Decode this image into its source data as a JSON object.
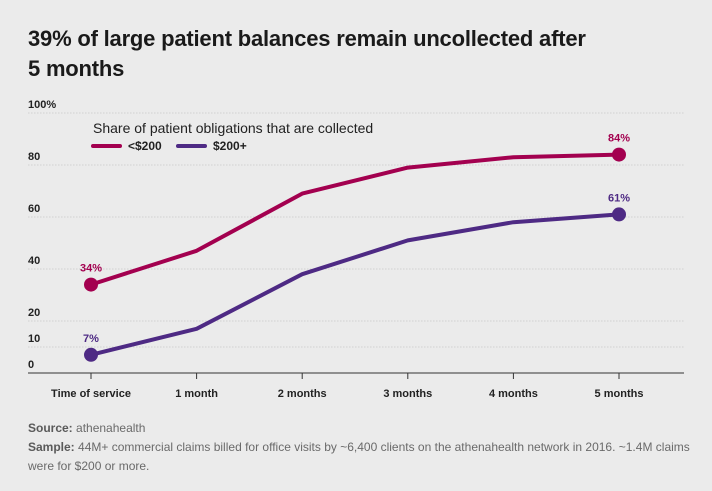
{
  "chart_data": {
    "type": "line",
    "title": "39% of large patient balances remain uncollected after 5 months",
    "legend_title": "Share of patient obligations that are collected",
    "categories": [
      "Time of service",
      "1 month",
      "2 months",
      "3 months",
      "4 months",
      "5 months"
    ],
    "series": [
      {
        "name": "<$200",
        "color": "#a3004f",
        "values": [
          34,
          47,
          69,
          79,
          83,
          84
        ],
        "labels": {
          "0": "34%",
          "5": "84%"
        }
      },
      {
        "name": "$200+",
        "color": "#4e2a84",
        "values": [
          7,
          17,
          38,
          51,
          58,
          61
        ],
        "labels": {
          "0": "7%",
          "5": "61%"
        }
      }
    ],
    "y_ticks": [
      "100%",
      "80",
      "60",
      "40",
      "20",
      "10",
      "0"
    ],
    "y_tick_values": [
      100,
      80,
      60,
      40,
      20,
      10,
      0
    ],
    "ylim": [
      0,
      100
    ],
    "xlabel": "",
    "ylabel": ""
  },
  "footer": {
    "source_label": "Source:",
    "source_text": " athenahealth",
    "sample_label": "Sample:",
    "sample_text": " 44M+ commercial claims billed for office visits by ~6,400 clients on the athenahealth network in 2016. ~1.4M claims were for $200 or more."
  }
}
